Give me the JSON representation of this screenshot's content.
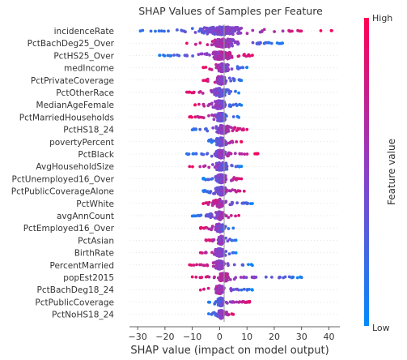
{
  "chart_data": {
    "type": "scatter",
    "subtype": "shap-beeswarm",
    "title": "SHAP Values of Samples per Feature",
    "xlabel": "SHAP value (impact on model output)",
    "xlim": [
      -33,
      44
    ],
    "xticks": [
      -30,
      -20,
      -10,
      0,
      10,
      20,
      30,
      40
    ],
    "xtick_labels": [
      "−30",
      "−20",
      "−10",
      "0",
      "10",
      "20",
      "30",
      "40"
    ],
    "grid": false,
    "colorbar": {
      "label": "Feature value",
      "high_label": "High",
      "low_label": "Low",
      "high_color": "#ff0052",
      "mid_color": "#8b3fc7",
      "low_color": "#008bfb"
    },
    "features": [
      {
        "name": "incidenceRate",
        "min": -29,
        "max": 41,
        "q_lo": -8,
        "q_hi": 10,
        "high_side": "right"
      },
      {
        "name": "PctBachDeg25_Over",
        "min": -12,
        "max": 23,
        "q_lo": -4,
        "q_hi": 8,
        "high_side": "left"
      },
      {
        "name": "PctHS25_Over",
        "min": -22,
        "max": 12,
        "q_lo": -4,
        "q_hi": 5,
        "high_side": "right"
      },
      {
        "name": "medIncome",
        "min": -6,
        "max": 10,
        "q_lo": -2,
        "q_hi": 4,
        "high_side": "left"
      },
      {
        "name": "PctPrivateCoverage",
        "min": -6,
        "max": 8,
        "q_lo": -2,
        "q_hi": 3,
        "high_side": "left"
      },
      {
        "name": "PctOtherRace",
        "min": -12,
        "max": 7,
        "q_lo": -3,
        "q_hi": 3,
        "high_side": "left"
      },
      {
        "name": "MedianAgeFemale",
        "min": -9,
        "max": 8,
        "q_lo": -3,
        "q_hi": 3,
        "high_side": "left"
      },
      {
        "name": "PctMarriedHouseholds",
        "min": -11,
        "max": 7,
        "q_lo": -2,
        "q_hi": 3,
        "high_side": "left"
      },
      {
        "name": "PctHS18_24",
        "min": -10,
        "max": 10,
        "q_lo": -2,
        "q_hi": 4,
        "high_side": "right"
      },
      {
        "name": "povertyPercent",
        "min": -4,
        "max": 8,
        "q_lo": -2,
        "q_hi": 3,
        "high_side": "right"
      },
      {
        "name": "PctBlack",
        "min": -12,
        "max": 14,
        "q_lo": -2,
        "q_hi": 3,
        "high_side": "right"
      },
      {
        "name": "AvgHouseholdSize",
        "min": -11,
        "max": 8,
        "q_lo": -2,
        "q_hi": 3,
        "high_side": "left"
      },
      {
        "name": "PctUnemployed16_Over",
        "min": -6,
        "max": 8,
        "q_lo": -2,
        "q_hi": 3,
        "high_side": "right"
      },
      {
        "name": "PctPublicCoverageAlone",
        "min": -6,
        "max": 9,
        "q_lo": -2,
        "q_hi": 3,
        "high_side": "right"
      },
      {
        "name": "PctWhite",
        "min": -6,
        "max": 12,
        "q_lo": -2,
        "q_hi": 2,
        "high_side": "left"
      },
      {
        "name": "avgAnnCount",
        "min": -10,
        "max": 7,
        "q_lo": -2,
        "q_hi": 2,
        "high_side": "right"
      },
      {
        "name": "PctEmployed16_Over",
        "min": -7,
        "max": 5,
        "q_lo": -2,
        "q_hi": 2,
        "high_side": "left"
      },
      {
        "name": "PctAsian",
        "min": -5,
        "max": 6,
        "q_lo": -1,
        "q_hi": 2,
        "high_side": "left"
      },
      {
        "name": "BirthRate",
        "min": -7,
        "max": 6,
        "q_lo": -2,
        "q_hi": 2,
        "high_side": "left"
      },
      {
        "name": "PercentMarried",
        "min": -11,
        "max": 12,
        "q_lo": -2,
        "q_hi": 2,
        "high_side": "left"
      },
      {
        "name": "popEst2015",
        "min": -10,
        "max": 30,
        "q_lo": -1,
        "q_hi": 4,
        "high_side": "left"
      },
      {
        "name": "PctBachDeg18_24",
        "min": -7,
        "max": 12,
        "q_lo": -2,
        "q_hi": 2,
        "high_side": "left"
      },
      {
        "name": "PctPublicCoverage",
        "min": -4,
        "max": 11,
        "q_lo": -1,
        "q_hi": 2,
        "high_side": "right"
      },
      {
        "name": "PctNoHS18_24",
        "min": -4,
        "max": 5,
        "q_lo": -1,
        "q_hi": 2,
        "high_side": "right"
      }
    ]
  }
}
